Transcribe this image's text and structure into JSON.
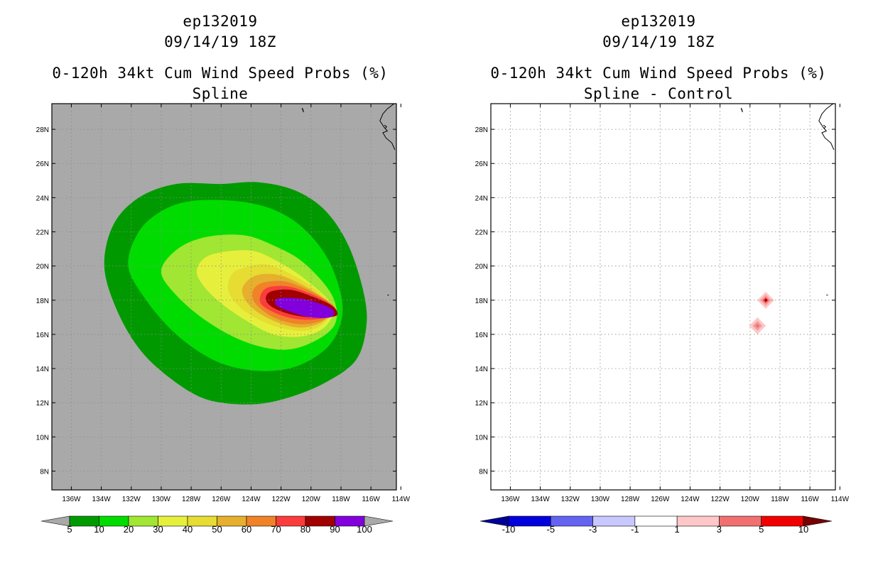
{
  "chart_data": [
    {
      "type": "contour-map",
      "title_lines": [
        "ep132019",
        "09/14/19 18Z",
        "0-120h 34kt Cum Wind Speed Probs (%)",
        "Spline"
      ],
      "x_ticks": [
        "136W",
        "134W",
        "132W",
        "130W",
        "128W",
        "126W",
        "124W",
        "122W",
        "120W",
        "118W",
        "116W",
        "114W"
      ],
      "x_tick_values": [
        -136,
        -134,
        -132,
        -130,
        -128,
        -126,
        -124,
        -122,
        -120,
        -118,
        -116,
        -114
      ],
      "y_ticks": [
        "8N",
        "10N",
        "12N",
        "14N",
        "16N",
        "18N",
        "20N",
        "22N",
        "24N",
        "26N",
        "28N"
      ],
      "y_tick_values": [
        8,
        10,
        12,
        14,
        16,
        18,
        20,
        22,
        24,
        26,
        28
      ],
      "xlim": [
        -137.3,
        -114.3
      ],
      "ylim": [
        6.9,
        29.5
      ],
      "background_color": "#a9a9a9",
      "grid": true,
      "colorbar": {
        "labels": [
          "5",
          "10",
          "20",
          "30",
          "40",
          "50",
          "60",
          "70",
          "80",
          "90",
          "100"
        ],
        "colors": [
          "#009a00",
          "#00dc00",
          "#a0e632",
          "#e6f03c",
          "#e6dc32",
          "#e6af2d",
          "#f08228",
          "#fa3c3c",
          "#a00000",
          "#8200dc"
        ],
        "under_color": "#a9a9a9",
        "over_color": "#a9a9a9"
      },
      "contours": [
        {
          "level": 5,
          "points": [
            [
              -129,
              24.8
            ],
            [
              -126,
              24.8
            ],
            [
              -123.5,
              24.9
            ],
            [
              -121,
              24.4
            ],
            [
              -119,
              23.2
            ],
            [
              -117.5,
              21.2
            ],
            [
              -116.5,
              18.5
            ],
            [
              -116.3,
              16.5
            ],
            [
              -117,
              14.5
            ],
            [
              -119,
              13.2
            ],
            [
              -121.5,
              12.3
            ],
            [
              -124,
              11.9
            ],
            [
              -127,
              12.2
            ],
            [
              -129.5,
              13.5
            ],
            [
              -131.5,
              15.2
            ],
            [
              -133,
              17.5
            ],
            [
              -133.8,
              20
            ],
            [
              -133.2,
              22.4
            ],
            [
              -131.5,
              24
            ]
          ]
        },
        {
          "level": 10,
          "points": [
            [
              -128,
              23.8
            ],
            [
              -125,
              23.8
            ],
            [
              -122.5,
              23.3
            ],
            [
              -120.5,
              22.2
            ],
            [
              -118.8,
              20.3
            ],
            [
              -117.9,
              17.8
            ],
            [
              -118.3,
              16
            ],
            [
              -119.5,
              14.8
            ],
            [
              -121.5,
              14
            ],
            [
              -124,
              13.9
            ],
            [
              -126.5,
              14.5
            ],
            [
              -129,
              16
            ],
            [
              -131,
              18
            ],
            [
              -132.2,
              20
            ],
            [
              -131.5,
              22
            ],
            [
              -130,
              23.2
            ]
          ]
        },
        {
          "level": 20,
          "points": [
            [
              -127,
              21.7
            ],
            [
              -124.5,
              21.8
            ],
            [
              -122.5,
              21.2
            ],
            [
              -120.5,
              20.2
            ],
            [
              -118.6,
              18.3
            ],
            [
              -118.4,
              16.6
            ],
            [
              -120,
              15.5
            ],
            [
              -122,
              15.1
            ],
            [
              -124.5,
              15.6
            ],
            [
              -127,
              16.8
            ],
            [
              -129,
              18.3
            ],
            [
              -130,
              19.7
            ],
            [
              -128.9,
              21
            ]
          ]
        },
        {
          "level": 30,
          "points": [
            [
              -126,
              20.8
            ],
            [
              -124,
              20.9
            ],
            [
              -122.5,
              20.4
            ],
            [
              -120.5,
              19.3
            ],
            [
              -118.6,
              17.7
            ],
            [
              -119,
              16.5
            ],
            [
              -120.5,
              15.9
            ],
            [
              -122.5,
              16
            ],
            [
              -124.5,
              16.9
            ],
            [
              -126.5,
              18.2
            ],
            [
              -127.6,
              19.5
            ],
            [
              -127.2,
              20.4
            ]
          ]
        },
        {
          "level": 40,
          "points": [
            [
              -124.5,
              19.9
            ],
            [
              -123,
              20.1
            ],
            [
              -121.5,
              19.6
            ],
            [
              -119.8,
              18.7
            ],
            [
              -118.6,
              17.6
            ],
            [
              -119.2,
              16.6
            ],
            [
              -120.5,
              16.2
            ],
            [
              -122.5,
              16.5
            ],
            [
              -124.5,
              17.4
            ],
            [
              -125.5,
              18.5
            ],
            [
              -125.3,
              19.5
            ]
          ]
        },
        {
          "level": 50,
          "points": [
            [
              -123.8,
              19.4
            ],
            [
              -122.3,
              19.5
            ],
            [
              -120.8,
              19
            ],
            [
              -119.3,
              18.2
            ],
            [
              -118.5,
              17.5
            ],
            [
              -119.3,
              16.7
            ],
            [
              -120.8,
              16.4
            ],
            [
              -122.5,
              16.8
            ],
            [
              -124,
              17.6
            ],
            [
              -124.6,
              18.6
            ]
          ]
        },
        {
          "level": 60,
          "points": [
            [
              -123.3,
              19
            ],
            [
              -121.8,
              19.1
            ],
            [
              -120.2,
              18.6
            ],
            [
              -118.8,
              17.9
            ],
            [
              -118.4,
              17.4
            ],
            [
              -119.3,
              16.8
            ],
            [
              -120.8,
              16.6
            ],
            [
              -122.5,
              17
            ],
            [
              -123.7,
              17.8
            ],
            [
              -123.9,
              18.5
            ]
          ]
        },
        {
          "level": 70,
          "points": [
            [
              -123,
              18.7
            ],
            [
              -121.5,
              18.8
            ],
            [
              -119.8,
              18.3
            ],
            [
              -118.6,
              17.7
            ],
            [
              -118.3,
              17.2
            ],
            [
              -119.5,
              16.9
            ],
            [
              -121,
              16.9
            ],
            [
              -122.5,
              17.3
            ],
            [
              -123.4,
              17.9
            ]
          ]
        },
        {
          "level": 80,
          "points": [
            [
              -122.7,
              18.5
            ],
            [
              -121.3,
              18.6
            ],
            [
              -119.6,
              18.1
            ],
            [
              -118.5,
              17.6
            ],
            [
              -118.3,
              17.1
            ],
            [
              -119.5,
              17
            ],
            [
              -121,
              17.1
            ],
            [
              -122.4,
              17.5
            ],
            [
              -123,
              18
            ]
          ]
        },
        {
          "level": 90,
          "points": [
            [
              -122.2,
              18.1
            ],
            [
              -120.8,
              18.1
            ],
            [
              -119.4,
              17.8
            ],
            [
              -118.5,
              17.4
            ],
            [
              -118.7,
              17
            ],
            [
              -120,
              17
            ],
            [
              -121.3,
              17.3
            ],
            [
              -122.3,
              17.7
            ]
          ]
        }
      ]
    },
    {
      "type": "contour-map",
      "title_lines": [
        "ep132019",
        "09/14/19 18Z",
        "0-120h 34kt Cum Wind Speed Probs (%)",
        "Spline - Control"
      ],
      "x_ticks": [
        "136W",
        "134W",
        "132W",
        "130W",
        "128W",
        "126W",
        "124W",
        "122W",
        "120W",
        "118W",
        "116W",
        "114W"
      ],
      "x_tick_values": [
        -136,
        -134,
        -132,
        -130,
        -128,
        -126,
        -124,
        -122,
        -120,
        -118,
        -116,
        -114
      ],
      "y_ticks": [
        "8N",
        "10N",
        "12N",
        "14N",
        "16N",
        "18N",
        "20N",
        "22N",
        "24N",
        "26N",
        "28N"
      ],
      "y_tick_values": [
        8,
        10,
        12,
        14,
        16,
        18,
        20,
        22,
        24,
        26,
        28
      ],
      "xlim": [
        -137.3,
        -114.3
      ],
      "ylim": [
        6.9,
        29.5
      ],
      "background_color": "#ffffff",
      "grid": true,
      "colorbar": {
        "labels": [
          "-10",
          "-5",
          "-3",
          "-1",
          "1",
          "3",
          "5",
          "10"
        ],
        "colors": [
          "#0000dc",
          "#6464f0",
          "#c8c8ff",
          "#ffffff",
          "#ffc8c8",
          "#f07070",
          "#f00000"
        ],
        "under_color": "#000096",
        "over_color": "#780000"
      },
      "features": [
        {
          "name": "diff-blob-north",
          "lon": -118.95,
          "lat": 18.0,
          "peak_level": 10
        },
        {
          "name": "diff-blob-south",
          "lon": -119.5,
          "lat": 16.5,
          "peak_level": 3
        }
      ]
    }
  ]
}
